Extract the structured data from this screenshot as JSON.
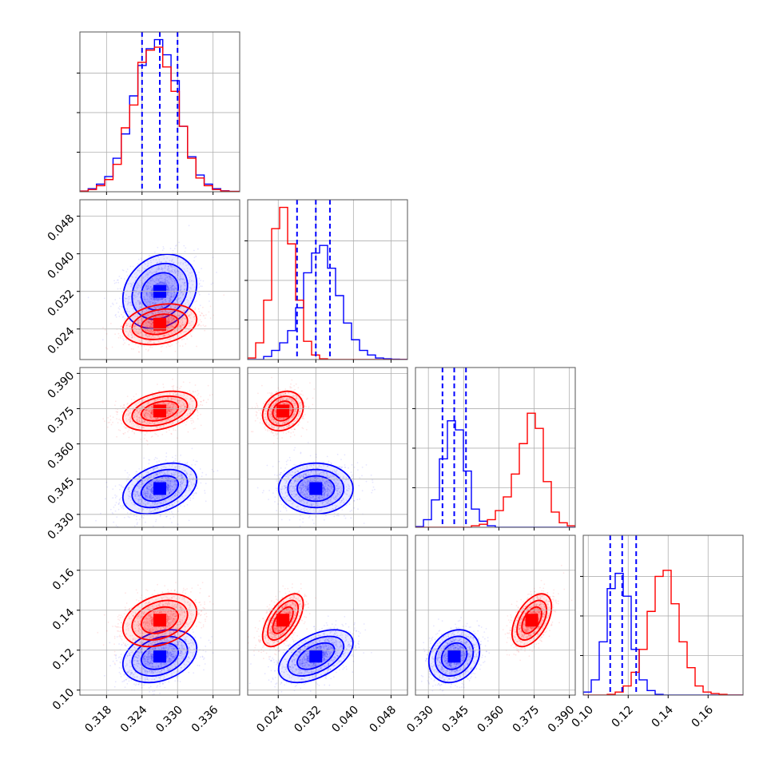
{
  "chart_data": {
    "type": "corner",
    "grid": true,
    "colors": {
      "blue": "#0000ff",
      "red": "#ff0000"
    },
    "series": [
      {
        "color": "#0000ff",
        "means": [
          0.327,
          0.032,
          0.341,
          0.117
        ],
        "sds": [
          0.0026,
          0.0033,
          0.0045,
          0.0055
        ],
        "quantile_lines": true
      },
      {
        "color": "#ff0000",
        "means": [
          0.327,
          0.025,
          0.374,
          0.135
        ],
        "sds": [
          0.0026,
          0.0018,
          0.0035,
          0.0055
        ],
        "quantile_lines": false
      }
    ],
    "correlations": [
      {
        "pair": [
          0,
          1
        ],
        "blue": 0.2,
        "red": 0.25
      },
      {
        "pair": [
          0,
          2
        ],
        "blue": 0.35,
        "red": 0.35
      },
      {
        "pair": [
          0,
          3
        ],
        "blue": 0.3,
        "red": 0.3
      },
      {
        "pair": [
          1,
          2
        ],
        "blue": 0.0,
        "red": 0.2
      },
      {
        "pair": [
          1,
          3
        ],
        "blue": 0.5,
        "red": 0.6
      },
      {
        "pair": [
          2,
          3
        ],
        "blue": 0.2,
        "red": 0.5
      }
    ],
    "quantiles": [
      [
        0.324,
        0.327,
        0.33
      ],
      [
        0.028,
        0.032,
        0.035
      ],
      [
        0.336,
        0.341,
        0.346
      ],
      [
        0.111,
        0.117,
        0.124
      ]
    ],
    "params": [
      {
        "range": [
          0.3135,
          0.3405
        ],
        "ticks": [
          0.318,
          0.324,
          0.33,
          0.336
        ],
        "tick_labels": [
          "0.318",
          "0.324",
          "0.330",
          "0.336"
        ]
      },
      {
        "range": [
          0.0175,
          0.0515
        ],
        "ticks": [
          0.024,
          0.032,
          0.04,
          0.048
        ],
        "tick_labels": [
          "0.024",
          "0.032",
          "0.040",
          "0.048"
        ]
      },
      {
        "range": [
          0.3245,
          0.3925
        ],
        "ticks": [
          0.33,
          0.345,
          0.36,
          0.375,
          0.39
        ],
        "tick_labels": [
          "0.330",
          "0.345",
          "0.360",
          "0.375",
          "0.390"
        ]
      },
      {
        "range": [
          0.0975,
          0.1775
        ],
        "ticks": [
          0.1,
          0.12,
          0.14,
          0.16
        ],
        "tick_labels": [
          "0.10",
          "0.12",
          "0.14",
          "0.16"
        ]
      }
    ],
    "histograms": [
      {
        "x": [
          0.3135,
          0.3149,
          0.3163,
          0.3177,
          0.3191,
          0.3205,
          0.3219,
          0.3233,
          0.3247,
          0.3261,
          0.3275,
          0.3289,
          0.3303,
          0.3317,
          0.3331,
          0.3345,
          0.3359,
          0.3373,
          0.3387,
          0.3405
        ],
        "blue": [
          0.005,
          0.02,
          0.05,
          0.1,
          0.22,
          0.38,
          0.63,
          0.83,
          0.94,
          1.0,
          0.9,
          0.73,
          0.43,
          0.23,
          0.11,
          0.05,
          0.02,
          0.006,
          0.002
        ],
        "red": [
          0.004,
          0.015,
          0.04,
          0.08,
          0.18,
          0.42,
          0.57,
          0.85,
          0.93,
          0.95,
          0.82,
          0.66,
          0.43,
          0.22,
          0.09,
          0.04,
          0.015,
          0.005,
          0.002
        ]
      },
      {
        "x": [
          0.0175,
          0.0192,
          0.0209,
          0.0226,
          0.0243,
          0.026,
          0.0277,
          0.0294,
          0.0311,
          0.0328,
          0.0345,
          0.0362,
          0.0379,
          0.0396,
          0.0413,
          0.043,
          0.0447,
          0.0464,
          0.0481,
          0.0498,
          0.0515
        ],
        "blue": [
          0.0,
          0.0,
          0.02,
          0.06,
          0.11,
          0.19,
          0.34,
          0.57,
          0.7,
          0.75,
          0.6,
          0.42,
          0.24,
          0.13,
          0.06,
          0.03,
          0.01,
          0.005,
          0.002,
          0.001
        ],
        "red": [
          0.01,
          0.11,
          0.39,
          0.86,
          1.0,
          0.76,
          0.39,
          0.12,
          0.03,
          0.005,
          0.0,
          0.0,
          0.0,
          0.0,
          0.0,
          0.0,
          0.0,
          0.0,
          0.0,
          0.0
        ]
      },
      {
        "x": [
          0.3245,
          0.3279,
          0.3313,
          0.3347,
          0.3381,
          0.3415,
          0.3449,
          0.3483,
          0.3517,
          0.3551,
          0.3585,
          0.3619,
          0.3653,
          0.3687,
          0.3721,
          0.3755,
          0.3789,
          0.3823,
          0.3857,
          0.3891,
          0.3925
        ],
        "blue": [
          0.005,
          0.05,
          0.18,
          0.45,
          0.7,
          0.64,
          0.37,
          0.12,
          0.04,
          0.01,
          0.0,
          0.0,
          0.0,
          0.0,
          0.0,
          0.0,
          0.0,
          0.0,
          0.0,
          0.0
        ],
        "red": [
          0.0,
          0.0,
          0.0,
          0.0,
          0.0,
          0.0,
          0.0,
          0.01,
          0.02,
          0.05,
          0.11,
          0.2,
          0.35,
          0.55,
          0.75,
          0.65,
          0.3,
          0.1,
          0.03,
          0.01
        ]
      },
      {
        "x": [
          0.0975,
          0.1015,
          0.1055,
          0.1095,
          0.1135,
          0.1175,
          0.1215,
          0.1255,
          0.1295,
          0.1335,
          0.1375,
          0.1415,
          0.1455,
          0.1495,
          0.1535,
          0.1575,
          0.1615,
          0.1655,
          0.1695,
          0.1735,
          0.1775
        ],
        "blue": [
          0.02,
          0.1,
          0.35,
          0.7,
          0.8,
          0.65,
          0.3,
          0.1,
          0.03,
          0.005,
          0.0,
          0.0,
          0.0,
          0.0,
          0.0,
          0.0,
          0.0,
          0.0,
          0.0,
          0.0
        ],
        "red": [
          0.0,
          0.0,
          0.0,
          0.005,
          0.02,
          0.06,
          0.15,
          0.3,
          0.55,
          0.78,
          0.82,
          0.6,
          0.35,
          0.18,
          0.06,
          0.02,
          0.01,
          0.005,
          0.0,
          0.0
        ]
      }
    ]
  }
}
